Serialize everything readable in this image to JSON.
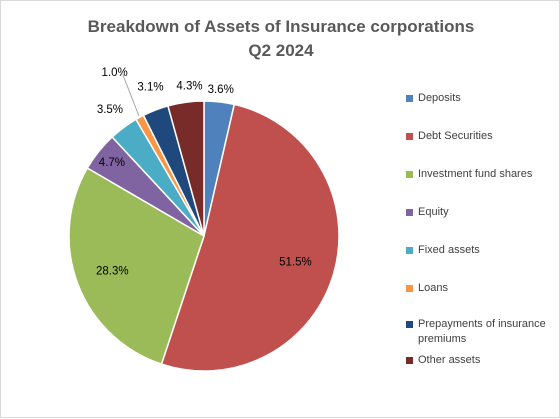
{
  "chart_data": {
    "type": "pie",
    "title": "Breakdown of Assets of Insurance corporations",
    "subtitle": "Q2 2024",
    "categories": [
      "Deposits",
      "Debt Securities",
      "Investment fund shares",
      "Equity",
      "Fixed assets",
      "Loans",
      "Prepayments of insurance premiums",
      "Other assets"
    ],
    "values": [
      3.6,
      51.5,
      28.3,
      4.7,
      3.5,
      1.0,
      3.1,
      4.3
    ],
    "data_labels": [
      "3.6%",
      "51.5%",
      "28.3%",
      "4.7%",
      "3.5%",
      "1.0%",
      "3.1%",
      "4.3%"
    ],
    "colors": [
      "#4F81BD",
      "#C0504D",
      "#9BBB59",
      "#8064A2",
      "#4BACC6",
      "#F79646",
      "#1F497D",
      "#772C2A"
    ],
    "legend_position": "right",
    "start_angle_deg": 0,
    "direction": "clockwise"
  }
}
